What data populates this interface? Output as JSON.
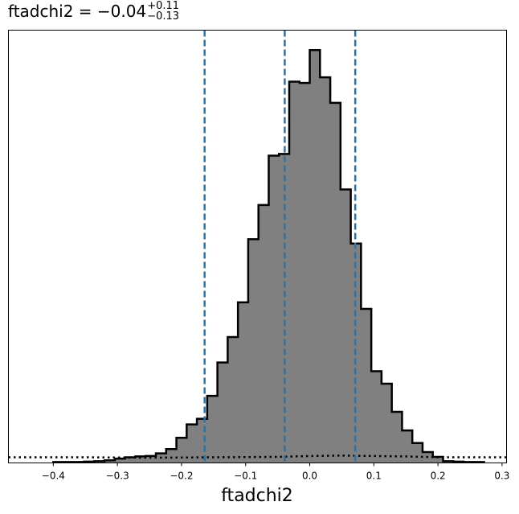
{
  "title": {
    "main": "ftadchi2 = −0.04",
    "upper": "+0.11",
    "lower": "−0.13"
  },
  "chart_data": {
    "type": "bar",
    "title": "ftadchi2 = −0.04 (+0.11 / −0.13)",
    "xlabel": "ftadchi2",
    "ylabel": "",
    "xlim": [
      -0.47,
      0.307
    ],
    "ylim": [
      0,
      1.0
    ],
    "xticks": [
      -0.4,
      -0.3,
      -0.2,
      -0.1,
      0.0,
      0.1,
      0.2,
      0.3
    ],
    "xtick_labels": [
      "−0.4",
      "−0.3",
      "−0.2",
      "−0.1",
      "0.0",
      "0.1",
      "0.2",
      "0.3"
    ],
    "grid": false,
    "histogram": {
      "fill_color": "#808080",
      "edge_color": "#000000",
      "bin_edges": [
        -0.4,
        -0.384,
        -0.368,
        -0.352,
        -0.336,
        -0.32,
        -0.304,
        -0.288,
        -0.272,
        -0.256,
        -0.24,
        -0.224,
        -0.208,
        -0.192,
        -0.176,
        -0.16,
        -0.144,
        -0.128,
        -0.112,
        -0.096,
        -0.08,
        -0.064,
        -0.048,
        -0.032,
        -0.016,
        0.0,
        0.016,
        0.032,
        0.048,
        0.064,
        0.08,
        0.096,
        0.112,
        0.128,
        0.144,
        0.16,
        0.176,
        0.192,
        0.208,
        0.224,
        0.24,
        0.256,
        0.272
      ],
      "counts": [
        0.002,
        0.002,
        0.002,
        0.003,
        0.004,
        0.006,
        0.01,
        0.013,
        0.015,
        0.016,
        0.022,
        0.032,
        0.058,
        0.089,
        0.102,
        0.155,
        0.232,
        0.291,
        0.371,
        0.517,
        0.596,
        0.71,
        0.714,
        0.881,
        0.878,
        0.954,
        0.891,
        0.832,
        0.632,
        0.507,
        0.356,
        0.212,
        0.183,
        0.118,
        0.075,
        0.046,
        0.025,
        0.014,
        0.004,
        0.003,
        0.002,
        0.002
      ]
    },
    "dotted_line": {
      "style": "dotted",
      "color": "#000000",
      "x": [
        -0.47,
        -0.35,
        -0.25,
        -0.15,
        -0.05,
        0.0,
        0.05,
        0.15,
        0.2,
        0.307
      ],
      "y": [
        0.013,
        0.013,
        0.012,
        0.013,
        0.014,
        0.016,
        0.017,
        0.015,
        0.013,
        0.013
      ]
    },
    "reference_lines": {
      "style": "dashed",
      "color": "#1f77b4",
      "x": [
        -0.164,
        -0.039,
        0.071
      ]
    }
  }
}
